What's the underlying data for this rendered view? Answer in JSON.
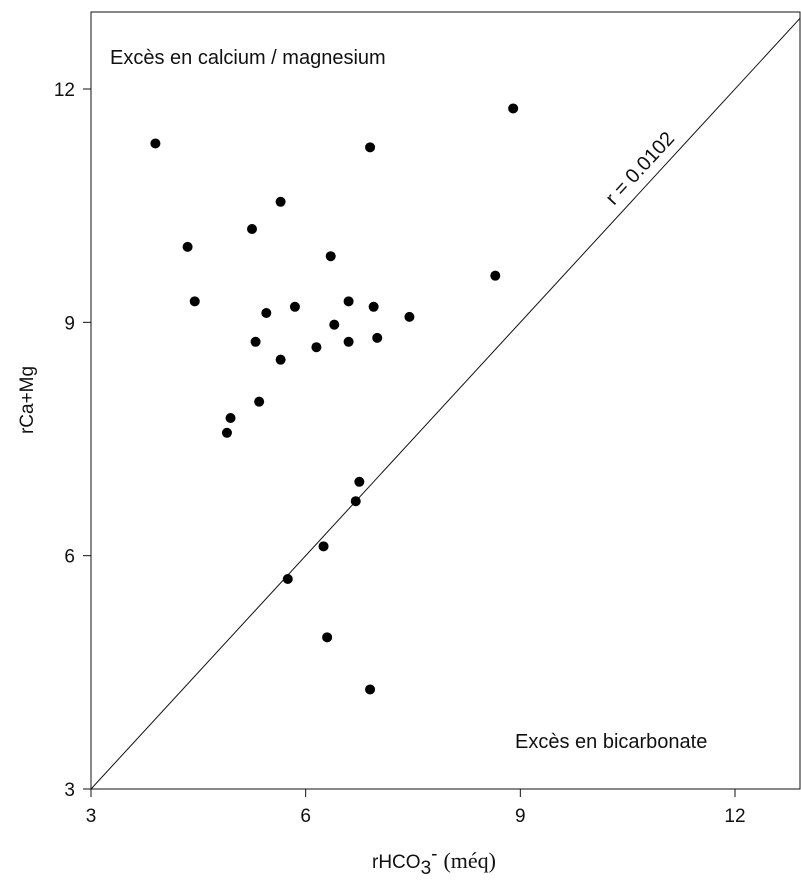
{
  "chart_data": {
    "type": "scatter",
    "title": "",
    "xlabel": {
      "main": "rHCO",
      "sub": "3",
      "sup": "-",
      "unit": "(méq)"
    },
    "ylabel": "rCa+Mg",
    "xlim": [
      3,
      13
    ],
    "ylim": [
      3,
      13
    ],
    "xticks": [
      "3",
      "6",
      "9",
      "12"
    ],
    "yticks": [
      "3",
      "6",
      "9",
      "12"
    ],
    "grid": false,
    "points": [
      {
        "x": 3.9,
        "y": 11.3
      },
      {
        "x": 8.9,
        "y": 11.75
      },
      {
        "x": 6.9,
        "y": 11.25
      },
      {
        "x": 5.65,
        "y": 10.55
      },
      {
        "x": 5.25,
        "y": 10.2
      },
      {
        "x": 4.35,
        "y": 9.97
      },
      {
        "x": 6.35,
        "y": 9.85
      },
      {
        "x": 8.65,
        "y": 9.6
      },
      {
        "x": 4.45,
        "y": 9.27
      },
      {
        "x": 6.6,
        "y": 9.27
      },
      {
        "x": 5.85,
        "y": 9.2
      },
      {
        "x": 6.95,
        "y": 9.2
      },
      {
        "x": 5.45,
        "y": 9.12
      },
      {
        "x": 7.45,
        "y": 9.07
      },
      {
        "x": 6.4,
        "y": 8.97
      },
      {
        "x": 7.0,
        "y": 8.8
      },
      {
        "x": 5.3,
        "y": 8.75
      },
      {
        "x": 6.6,
        "y": 8.75
      },
      {
        "x": 6.15,
        "y": 8.68
      },
      {
        "x": 5.65,
        "y": 8.52
      },
      {
        "x": 5.35,
        "y": 7.98
      },
      {
        "x": 4.95,
        "y": 7.77
      },
      {
        "x": 4.9,
        "y": 7.58
      },
      {
        "x": 6.75,
        "y": 6.95
      },
      {
        "x": 6.7,
        "y": 6.7
      },
      {
        "x": 6.25,
        "y": 6.12
      },
      {
        "x": 5.75,
        "y": 5.7
      },
      {
        "x": 6.3,
        "y": 4.95
      },
      {
        "x": 6.9,
        "y": 4.28
      }
    ],
    "reference_line": {
      "from": [
        3,
        3
      ],
      "to": [
        13,
        13
      ],
      "label": "r = 0.0102"
    },
    "annotations": {
      "top_left": "Excès en  calcium / magnesium",
      "bottom_right": "Excès en  bicarbonate"
    }
  }
}
